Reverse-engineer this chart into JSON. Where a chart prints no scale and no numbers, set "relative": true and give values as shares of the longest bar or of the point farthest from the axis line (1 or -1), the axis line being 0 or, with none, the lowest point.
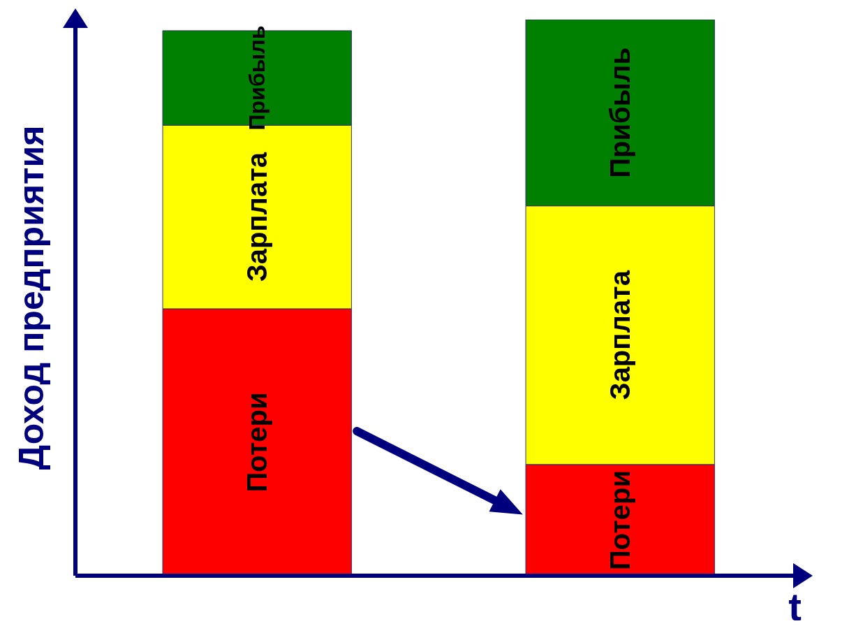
{
  "chart_data": {
    "type": "bar",
    "stacked": true,
    "relative": true,
    "xlabel": "t",
    "ylabel": "Доход предприятия",
    "categories": [
      null,
      null
    ],
    "series": [
      {
        "name": "Потери",
        "color": "#ff0000",
        "values": [
          0.48,
          0.2
        ]
      },
      {
        "name": "Зарплата",
        "color": "#ffff00",
        "values": [
          0.33,
          0.465
        ]
      },
      {
        "name": "Прибыль",
        "color": "#008000",
        "values": [
          0.17,
          0.335
        ]
      }
    ],
    "grid": false,
    "legend": false
  }
}
